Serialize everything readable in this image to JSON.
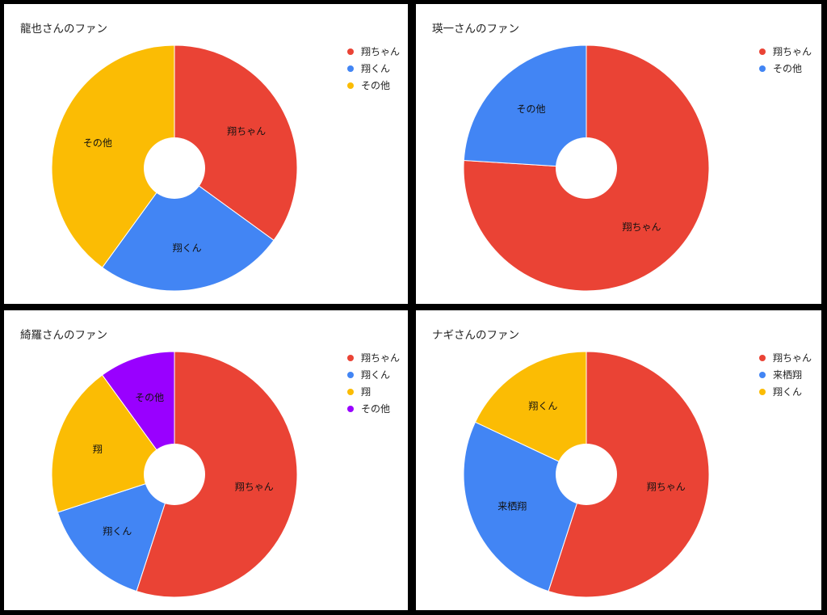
{
  "chart_data": [
    {
      "type": "pie",
      "title": "龍也さんのファン",
      "legend_position": "right",
      "slices": [
        {
          "label": "翔ちゃん",
          "value": 35,
          "color": "#EA4335"
        },
        {
          "label": "翔くん",
          "value": 25,
          "color": "#4285F4"
        },
        {
          "label": "その他",
          "value": 40,
          "color": "#FBBC04"
        }
      ]
    },
    {
      "type": "pie",
      "title": "瑛一さんのファン",
      "legend_position": "right",
      "slices": [
        {
          "label": "翔ちゃん",
          "value": 76,
          "color": "#EA4335"
        },
        {
          "label": "その他",
          "value": 24,
          "color": "#4285F4"
        }
      ]
    },
    {
      "type": "pie",
      "title": "綺羅さんのファン",
      "legend_position": "right",
      "slices": [
        {
          "label": "翔ちゃん",
          "value": 55,
          "color": "#EA4335"
        },
        {
          "label": "翔くん",
          "value": 15,
          "color": "#4285F4"
        },
        {
          "label": "翔",
          "value": 20,
          "color": "#FBBC04"
        },
        {
          "label": "その他",
          "value": 10,
          "color": "#9900FF"
        }
      ]
    },
    {
      "type": "pie",
      "title": "ナギさんのファン",
      "legend_position": "right",
      "slices": [
        {
          "label": "翔ちゃん",
          "value": 55,
          "color": "#EA4335"
        },
        {
          "label": "来栖翔",
          "value": 27,
          "color": "#4285F4"
        },
        {
          "label": "翔くん",
          "value": 18,
          "color": "#FBBC04"
        }
      ]
    }
  ]
}
